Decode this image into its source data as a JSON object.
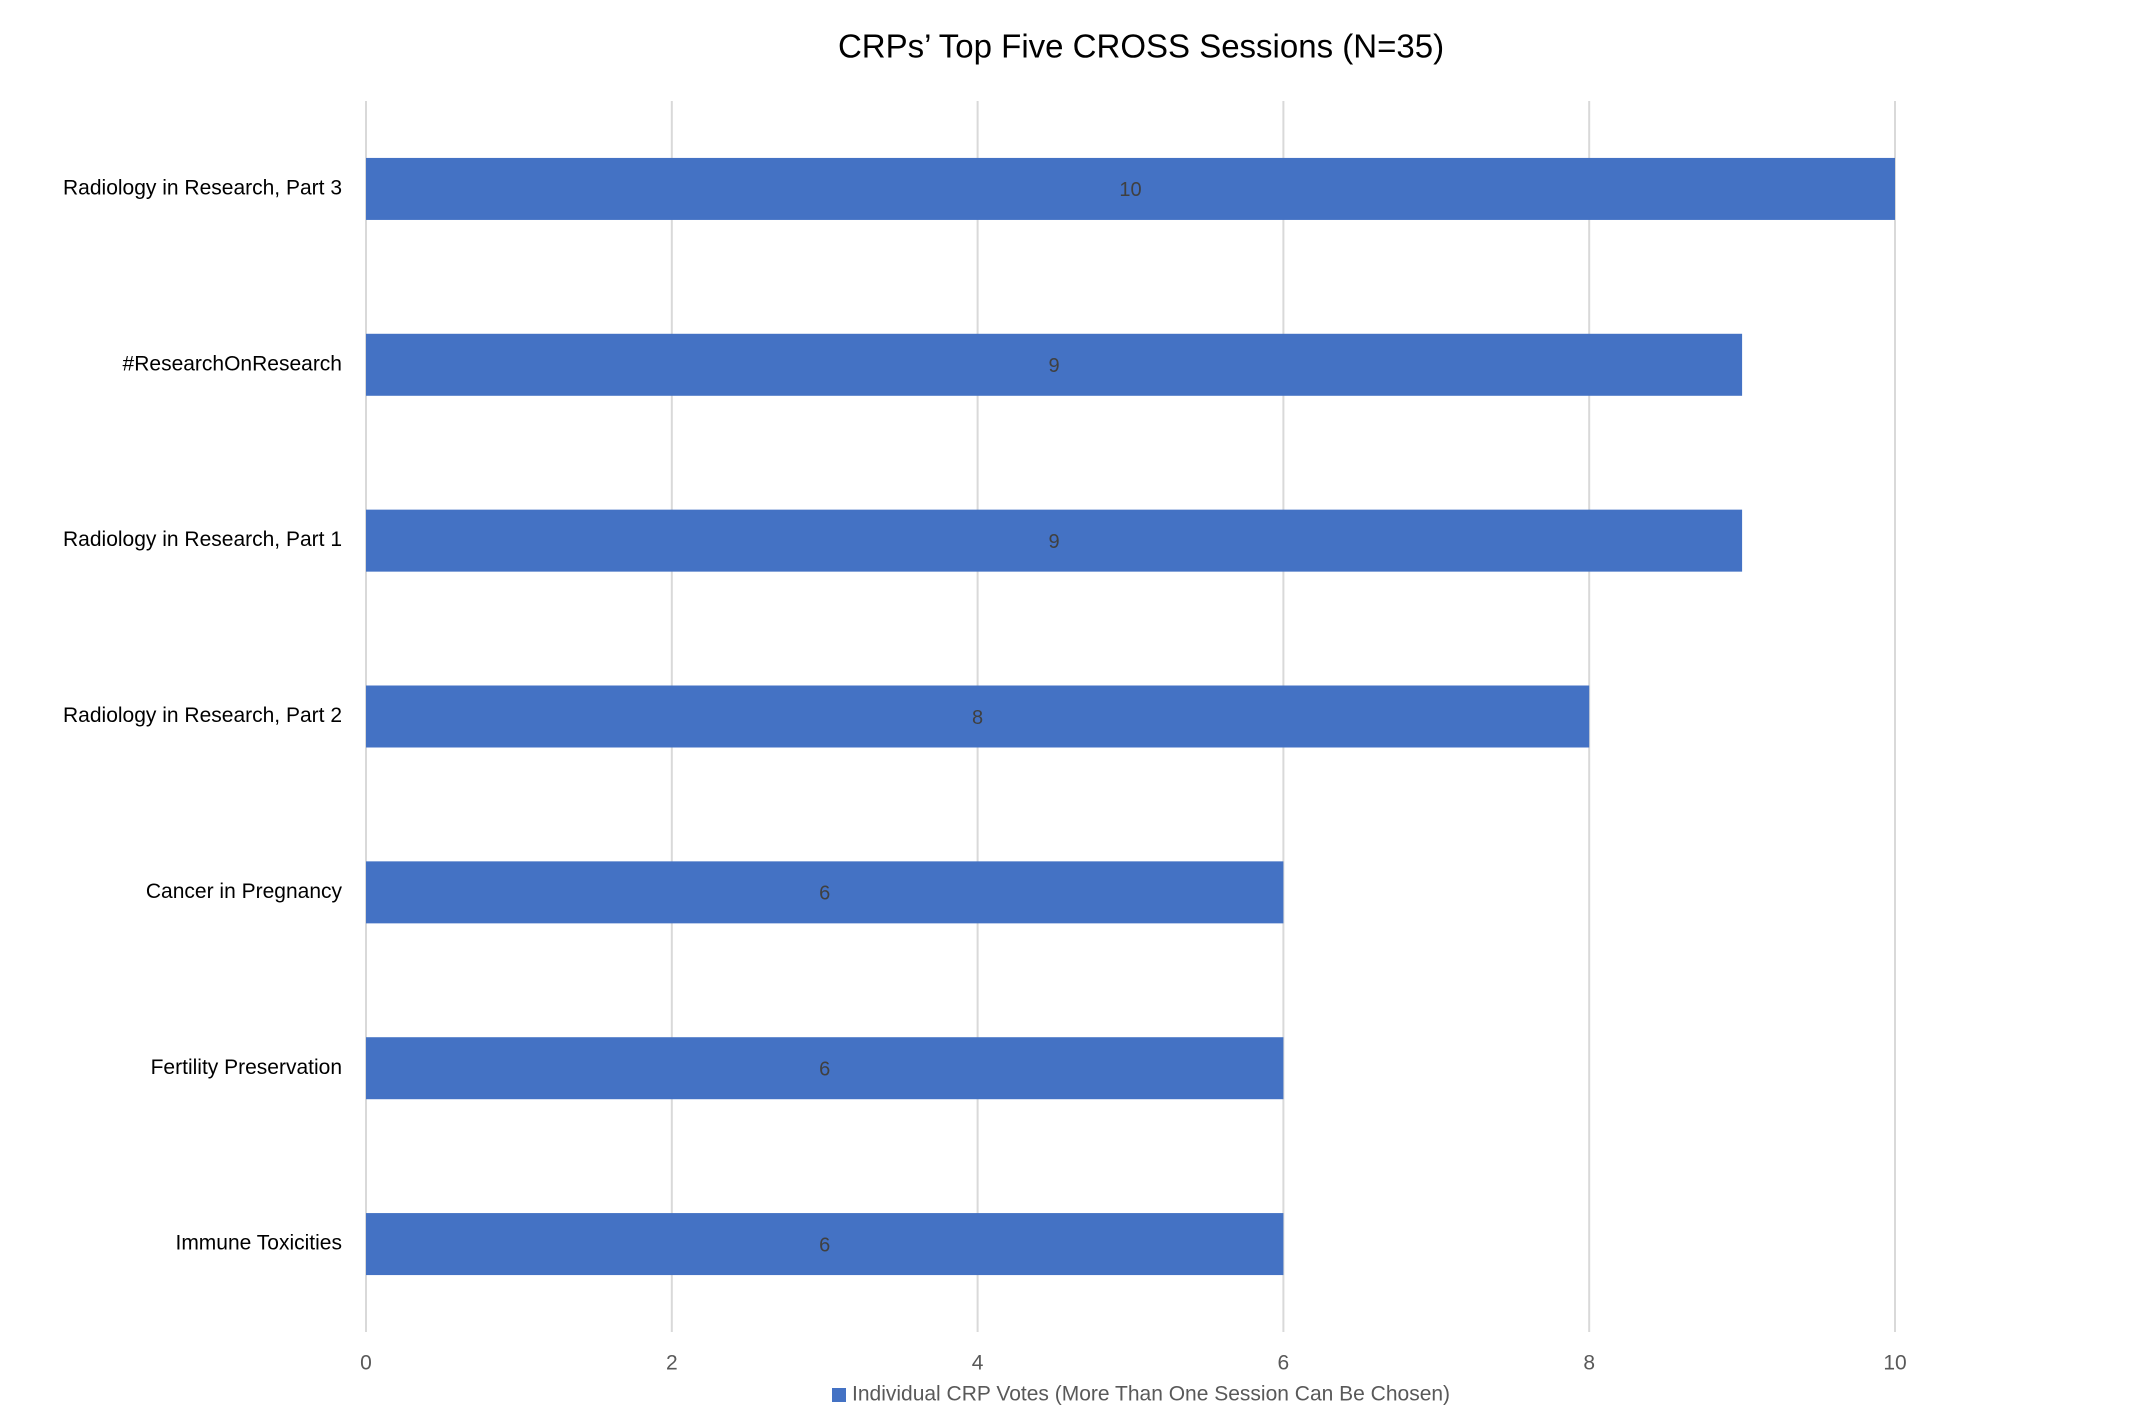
{
  "chart_data": {
    "type": "bar",
    "orientation": "horizontal",
    "title": "CRPs’ Top Five CROSS Sessions (N=35)",
    "categories": [
      "Radiology in Research, Part 3",
      "#ResearchOnResearch",
      "Radiology in Research, Part 1",
      "Radiology in Research, Part 2",
      "Cancer in Pregnancy",
      "Fertility Preservation",
      "Immune Toxicities"
    ],
    "series": [
      {
        "name": "Individual CRP Votes (More Than One Session Can Be Chosen)",
        "color": "#4472c4",
        "values": [
          10,
          9,
          9,
          8,
          6,
          6,
          6
        ]
      }
    ],
    "xlim": [
      0,
      10
    ],
    "xticks": [
      0,
      2,
      4,
      6,
      8,
      10
    ],
    "grid": true,
    "legend": "bottom"
  }
}
